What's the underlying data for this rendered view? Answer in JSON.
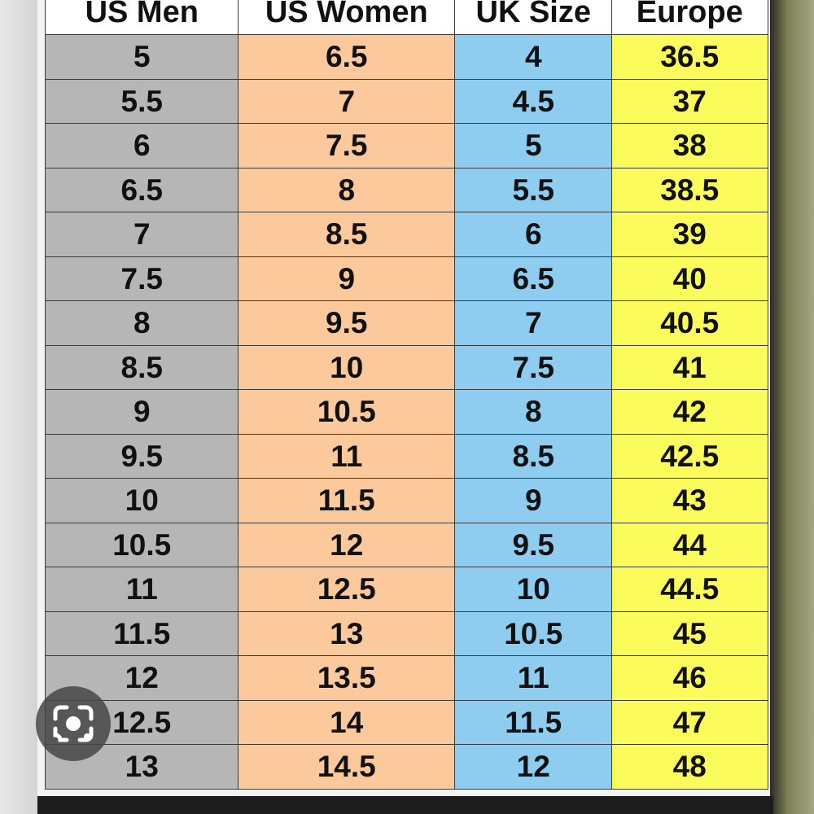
{
  "table": {
    "header": [
      "US Men",
      "US Women",
      "UK Size",
      "Europe"
    ],
    "rows": [
      [
        "5",
        "6.5",
        "4",
        "36.5"
      ],
      [
        "5.5",
        "7",
        "4.5",
        "37"
      ],
      [
        "6",
        "7.5",
        "5",
        "38"
      ],
      [
        "6.5",
        "8",
        "5.5",
        "38.5"
      ],
      [
        "7",
        "8.5",
        "6",
        "39"
      ],
      [
        "7.5",
        "9",
        "6.5",
        "40"
      ],
      [
        "8",
        "9.5",
        "7",
        "40.5"
      ],
      [
        "8.5",
        "10",
        "7.5",
        "41"
      ],
      [
        "9",
        "10.5",
        "8",
        "42"
      ],
      [
        "9.5",
        "11",
        "8.5",
        "42.5"
      ],
      [
        "10",
        "11.5",
        "9",
        "43"
      ],
      [
        "10.5",
        "12",
        "9.5",
        "44"
      ],
      [
        "11",
        "12.5",
        "10",
        "44.5"
      ],
      [
        "11.5",
        "13",
        "10.5",
        "45"
      ],
      [
        "12",
        "13.5",
        "11",
        "46"
      ],
      [
        "12.5",
        "14",
        "11.5",
        "47"
      ],
      [
        "13",
        "14.5",
        "12",
        "48"
      ]
    ]
  }
}
